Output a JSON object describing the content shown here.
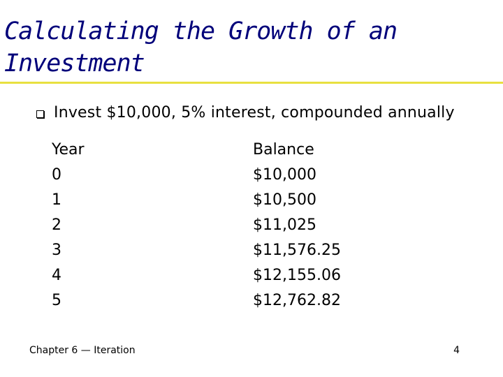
{
  "slide": {
    "title": "Calculating the Growth of an Investment",
    "bullet": "Invest $10,000, 5% interest, compounded annually",
    "accent_color": "#e8e040",
    "title_color": "#00007a"
  },
  "table": {
    "headers": [
      "Year",
      "Balance"
    ],
    "rows": [
      [
        "0",
        "$10,000"
      ],
      [
        "1",
        "$10,500"
      ],
      [
        "2",
        "$11,025"
      ],
      [
        "3",
        "$11,576.25"
      ],
      [
        "4",
        "$12,155.06"
      ],
      [
        "5",
        "$12,762.82"
      ]
    ]
  },
  "footer": {
    "chapter": "Chapter 6 — Iteration",
    "page_number": "4"
  }
}
